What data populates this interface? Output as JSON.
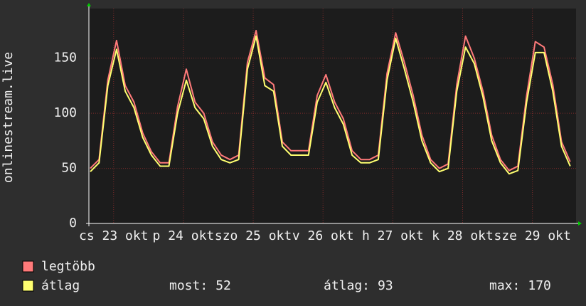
{
  "chart_data": {
    "type": "line",
    "y_label": "onlinestream.live",
    "x": [
      4,
      7,
      10,
      13,
      16,
      19,
      22,
      25,
      28,
      31,
      34,
      37,
      40,
      43,
      46,
      49,
      52,
      55,
      58,
      61,
      64,
      67,
      70,
      73,
      76,
      79,
      82,
      85,
      88,
      91,
      94,
      97,
      100,
      103,
      106,
      109,
      112,
      115,
      118,
      121,
      124,
      127,
      130,
      133,
      136,
      139,
      142,
      145,
      148,
      151,
      154,
      157,
      160,
      163,
      166,
      169
    ],
    "xlim": [
      3.5,
      171
    ],
    "xticks": [
      {
        "value": 12,
        "label": "cs 23 okt"
      },
      {
        "value": 36,
        "label": "p 24 okt"
      },
      {
        "value": 60,
        "label": "szo 25 okt"
      },
      {
        "value": 84,
        "label": "v 26 okt"
      },
      {
        "value": 108,
        "label": "h 27 okt"
      },
      {
        "value": 132,
        "label": "k 28 okt"
      },
      {
        "value": 156,
        "label": "sze 29 okt"
      }
    ],
    "ylim": [
      0,
      195
    ],
    "yticks": [
      0,
      50,
      100,
      150
    ],
    "grid": true,
    "series": [
      {
        "name": "legtöbb",
        "color": "#ff7a7a",
        "values": [
          50,
          58,
          130,
          166,
          125,
          110,
          82,
          65,
          55,
          55,
          106,
          140,
          110,
          100,
          74,
          62,
          58,
          62,
          146,
          175,
          132,
          126,
          74,
          66,
          66,
          66,
          116,
          135,
          110,
          95,
          66,
          58,
          58,
          62,
          136,
          173,
          146,
          116,
          80,
          58,
          50,
          54,
          126,
          170,
          150,
          120,
          80,
          58,
          48,
          52,
          116,
          165,
          160,
          126,
          74,
          56
        ]
      },
      {
        "name": "átlag",
        "color": "#ffff70",
        "values": [
          47,
          55,
          125,
          158,
          120,
          105,
          78,
          62,
          52,
          52,
          100,
          130,
          105,
          95,
          70,
          58,
          55,
          58,
          140,
          170,
          125,
          120,
          70,
          62,
          62,
          62,
          110,
          128,
          105,
          90,
          62,
          55,
          55,
          58,
          130,
          168,
          140,
          110,
          75,
          55,
          47,
          50,
          120,
          160,
          145,
          115,
          75,
          55,
          45,
          48,
          110,
          155,
          155,
          120,
          70,
          52
        ]
      }
    ],
    "stats": [
      {
        "label": "most:",
        "value": 52
      },
      {
        "label": "átlag:",
        "value": 93
      },
      {
        "label": "max:",
        "value": 170
      }
    ]
  }
}
